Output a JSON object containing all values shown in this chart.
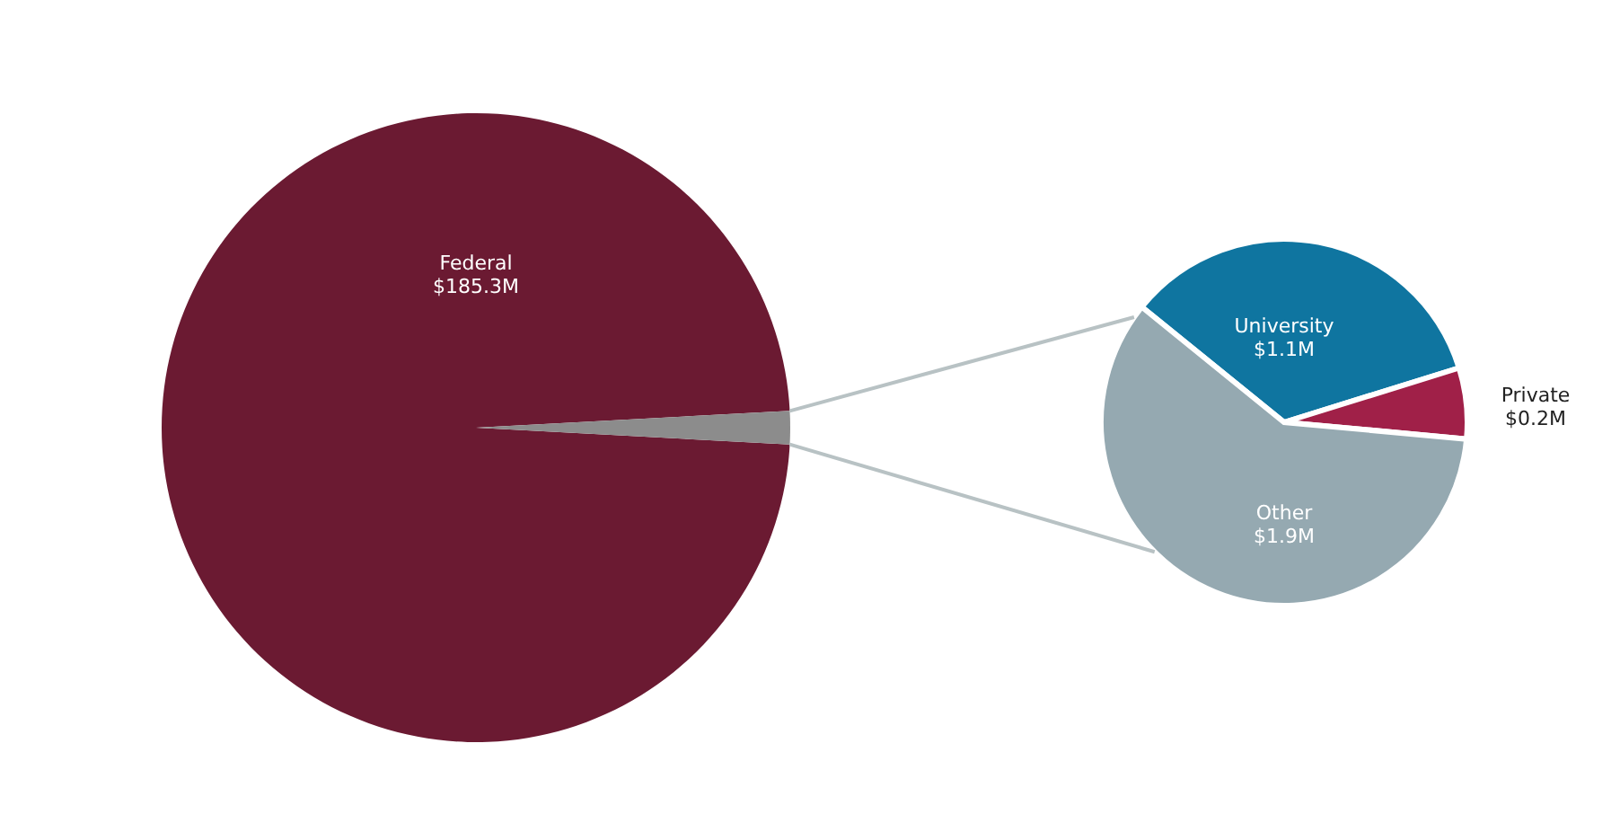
{
  "chart_data": [
    {
      "type": "pie",
      "categories": [
        "Federal",
        null
      ],
      "values": [
        185.3,
        3.2
      ],
      "value_labels": [
        "$185.3M",
        null
      ],
      "colors": [
        "#6b1a32",
        "#8c8c8c"
      ]
    },
    {
      "type": "pie",
      "categories": [
        "University",
        "Private",
        "Other"
      ],
      "values": [
        1.1,
        0.2,
        1.9
      ],
      "value_labels": [
        "$1.1M",
        "$0.2M",
        "$1.9M"
      ],
      "colors": [
        "#0f75a0",
        "#a02048",
        "#95a9b1"
      ]
    }
  ]
}
